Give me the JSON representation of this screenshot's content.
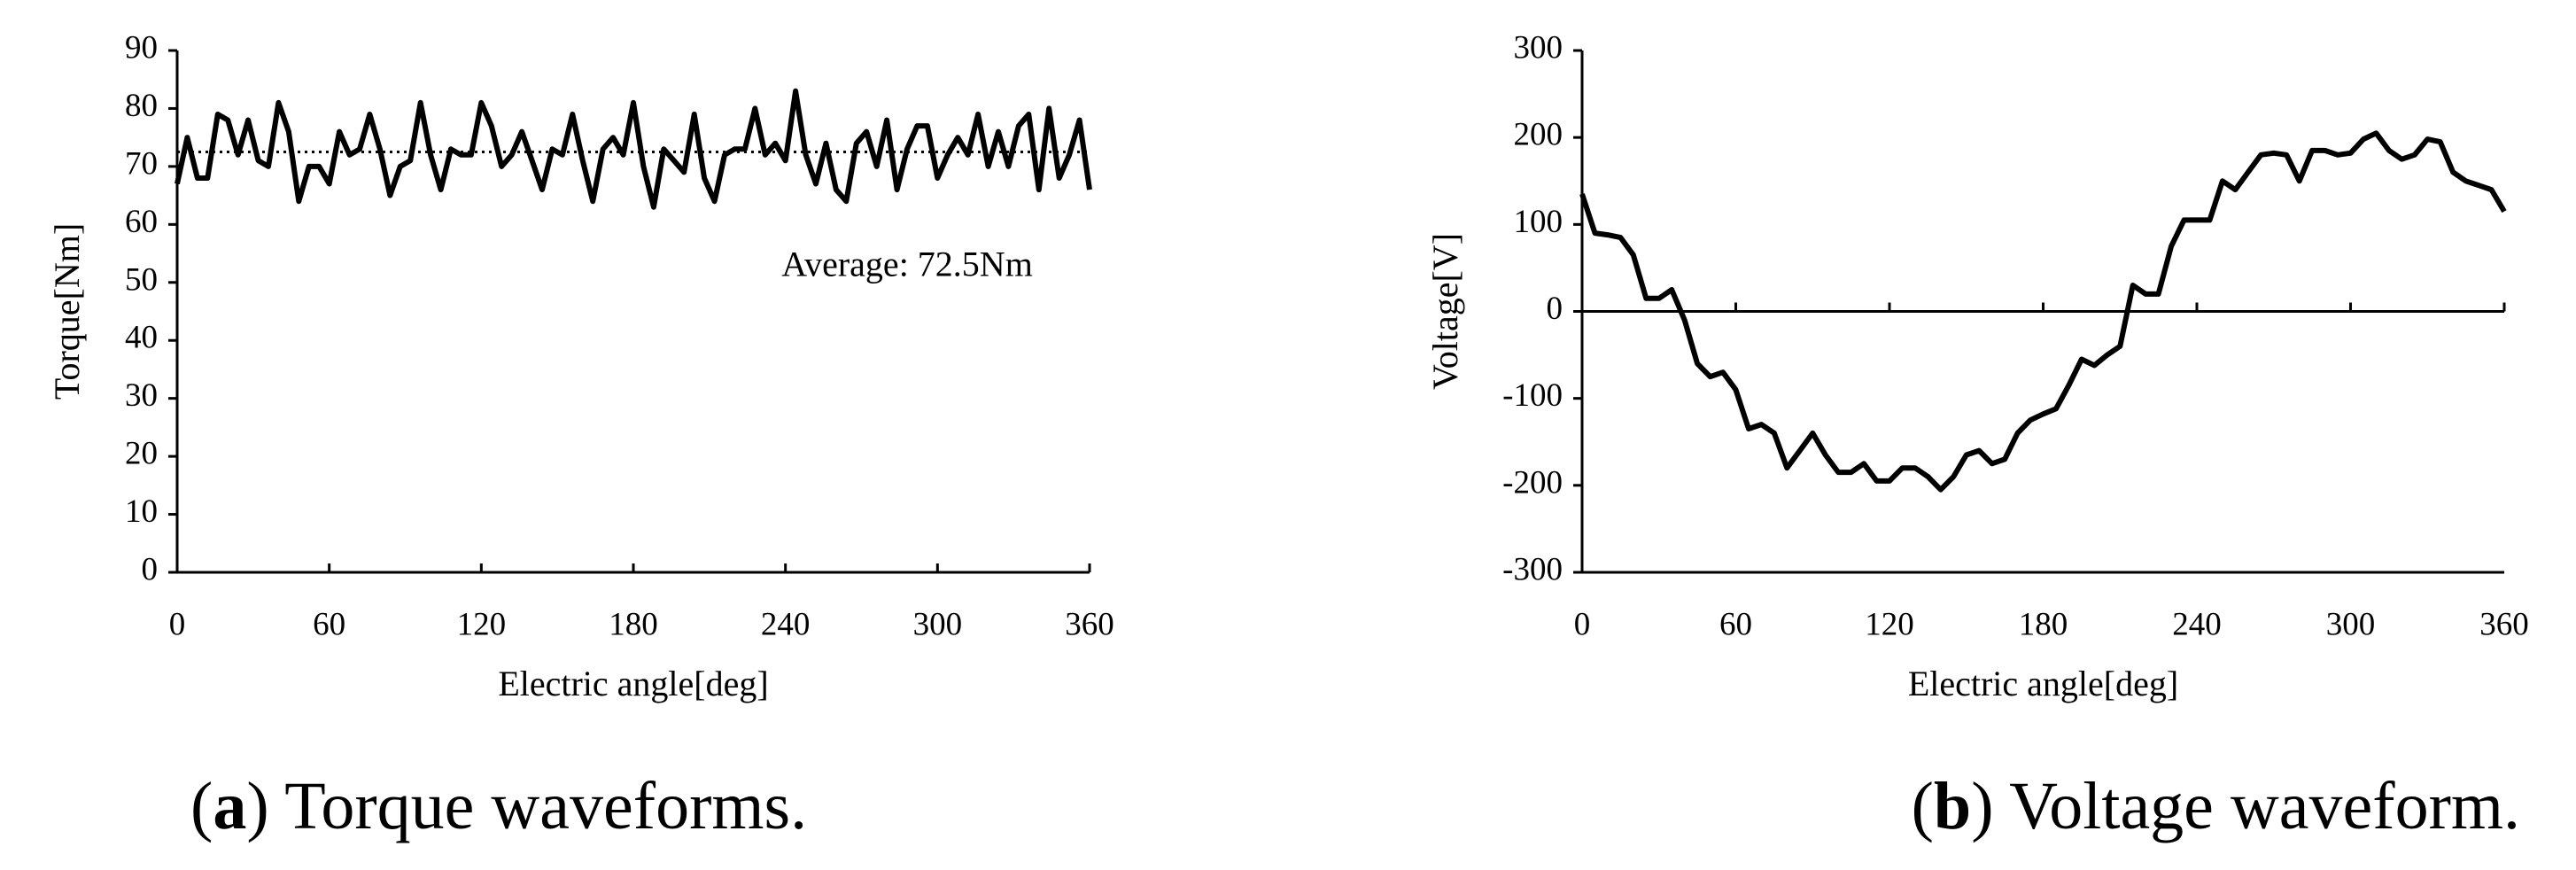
{
  "chart_data": [
    {
      "type": "line",
      "x_label": "Electric angle[deg]",
      "y_label": "Torque[Nm]",
      "xlim": [
        0,
        360
      ],
      "xticks": [
        0,
        60,
        120,
        180,
        240,
        300,
        360
      ],
      "ylim": [
        0,
        90
      ],
      "yticks": [
        0,
        10,
        20,
        30,
        40,
        50,
        60,
        70,
        80,
        90
      ],
      "average": 72.5,
      "annotation": "Average: 72.5Nm",
      "caption": [
        "(",
        "a",
        ") Torque waveforms."
      ],
      "x": [
        0,
        4,
        8,
        12,
        16,
        20,
        24,
        28,
        32,
        36,
        40,
        44,
        48,
        52,
        56,
        60,
        64,
        68,
        72,
        76,
        80,
        84,
        88,
        92,
        96,
        100,
        104,
        108,
        112,
        116,
        120,
        124,
        128,
        132,
        136,
        140,
        144,
        148,
        152,
        156,
        160,
        164,
        168,
        172,
        176,
        180,
        184,
        188,
        192,
        196,
        200,
        204,
        208,
        212,
        216,
        220,
        224,
        228,
        232,
        236,
        240,
        244,
        248,
        252,
        256,
        260,
        264,
        268,
        272,
        276,
        280,
        284,
        288,
        292,
        296,
        300,
        304,
        308,
        312,
        316,
        320,
        324,
        328,
        332,
        336,
        340,
        344,
        348,
        352,
        356,
        360
      ],
      "series": [
        {
          "color": "#000000",
          "values": [
            67,
            75,
            68,
            68,
            79,
            78,
            72,
            78,
            71,
            70,
            81,
            76,
            64,
            70,
            70,
            67,
            76,
            72,
            73,
            79,
            73,
            65,
            70,
            71,
            81,
            72,
            66,
            73,
            72,
            72,
            81,
            77,
            70,
            72,
            76,
            71,
            66,
            73,
            72,
            79,
            71,
            64,
            73,
            75,
            72,
            81,
            70,
            63,
            73,
            71,
            69,
            79,
            68,
            64,
            72,
            73,
            73,
            80,
            72,
            74,
            71,
            83,
            72,
            67,
            74,
            66,
            64,
            74,
            76,
            70,
            78,
            66,
            73,
            77,
            77,
            68,
            72,
            75,
            72,
            79,
            70,
            76,
            70,
            77,
            79,
            66,
            80,
            68,
            72,
            78,
            66
          ]
        }
      ]
    },
    {
      "type": "line",
      "x_label": "Electric angle[deg]",
      "y_label": "Voltage[V]",
      "xlim": [
        0,
        360
      ],
      "xticks": [
        0,
        60,
        120,
        180,
        240,
        300,
        360
      ],
      "ylim": [
        -300,
        300
      ],
      "yticks": [
        -300,
        -200,
        -100,
        0,
        100,
        200,
        300
      ],
      "zero_line": 0,
      "caption": [
        "(",
        "b",
        ") Voltage waveform."
      ],
      "x": [
        0,
        5,
        10,
        15,
        20,
        25,
        30,
        35,
        40,
        45,
        50,
        55,
        60,
        65,
        70,
        75,
        80,
        85,
        90,
        95,
        100,
        105,
        110,
        115,
        120,
        125,
        130,
        135,
        140,
        145,
        150,
        155,
        160,
        165,
        170,
        175,
        180,
        185,
        190,
        195,
        200,
        205,
        210,
        215,
        220,
        225,
        230,
        235,
        240,
        245,
        250,
        255,
        260,
        265,
        270,
        275,
        280,
        285,
        290,
        295,
        300,
        305,
        310,
        315,
        320,
        325,
        330,
        335,
        340,
        345,
        350,
        355,
        360
      ],
      "series": [
        {
          "color": "#000000",
          "values": [
            135,
            90,
            88,
            85,
            65,
            15,
            15,
            25,
            -10,
            -60,
            -75,
            -70,
            -90,
            -135,
            -130,
            -140,
            -180,
            -160,
            -140,
            -165,
            -185,
            -185,
            -175,
            -195,
            -195,
            -180,
            -180,
            -190,
            -205,
            -190,
            -165,
            -160,
            -175,
            -170,
            -140,
            -125,
            -118,
            -112,
            -85,
            -55,
            -62,
            -50,
            -40,
            30,
            20,
            20,
            75,
            105,
            105,
            105,
            150,
            140,
            160,
            180,
            182,
            180,
            150,
            185,
            185,
            180,
            182,
            198,
            205,
            185,
            175,
            180,
            198,
            195,
            160,
            150,
            145,
            140,
            115
          ]
        }
      ]
    }
  ]
}
